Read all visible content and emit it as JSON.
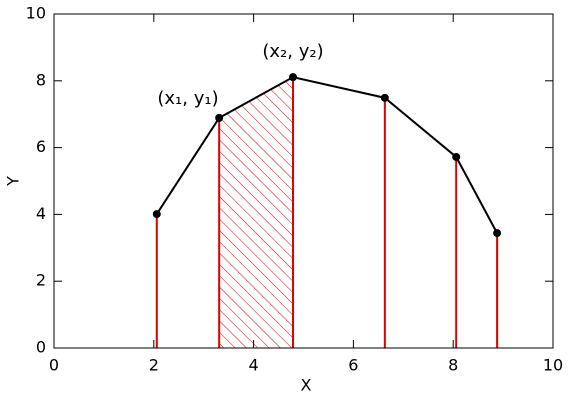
{
  "chart_data": {
    "type": "line",
    "x_label": "X",
    "y_label": "Y",
    "x": [
      2.06,
      3.31,
      4.79,
      6.63,
      8.06,
      8.88
    ],
    "series": [
      {
        "values": [
          4.01,
          6.89,
          8.11,
          7.49,
          5.72,
          3.44
        ],
        "color": "#000000"
      }
    ],
    "stems": true,
    "stem_color": "#dd0000",
    "shaded_interval": [
      1,
      2
    ],
    "annotations": [
      "(x₁, y₁)",
      "(x₂, y₂)"
    ],
    "xlim": [
      0,
      10
    ],
    "ylim": [
      0,
      10
    ],
    "xticks": [
      0,
      2,
      4,
      6,
      8,
      10
    ],
    "yticks": [
      0,
      2,
      4,
      6,
      8,
      10
    ]
  }
}
